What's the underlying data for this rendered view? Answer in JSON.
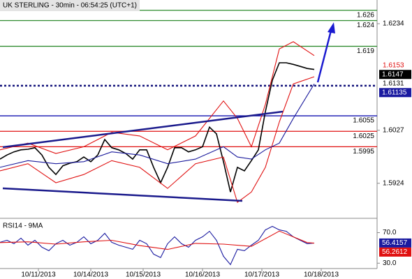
{
  "chart_data": [
    {
      "type": "line",
      "title": "UK STERLING - 30min - 06:54:25 (UTC+1)",
      "xlim": [
        0,
        54
      ],
      "ylim": [
        1.586,
        1.628
      ],
      "yticks": [
        1.5924,
        1.6027,
        1.6234
      ],
      "levels": [
        {
          "value": 1.626,
          "color": "#2e8b2e"
        },
        {
          "value": 1.624,
          "color": "#2e8b2e"
        },
        {
          "value": 1.619,
          "color": "#2e8b2e"
        },
        {
          "value": 1.61135,
          "color": "#10107a",
          "style": "dotted"
        },
        {
          "value": 1.6055,
          "color": "#1010b0"
        },
        {
          "value": 1.6025,
          "color": "#e01010"
        },
        {
          "value": 1.5995,
          "color": "#e01010"
        }
      ],
      "price_labels": [
        {
          "value": 1.6153,
          "color": "#e01010"
        },
        {
          "value": 1.6147,
          "box": "#000000"
        },
        {
          "value": 1.6131,
          "color": "#000000"
        },
        {
          "value": 1.61135,
          "box": "#1a1aa0"
        }
      ],
      "series": [
        {
          "color": "#000000",
          "x": [
            0,
            1,
            2,
            3,
            4,
            5,
            6,
            7,
            8,
            9,
            10,
            11,
            12,
            13,
            14,
            15,
            16,
            17,
            18,
            19,
            20,
            21,
            22,
            23,
            24,
            25,
            26,
            27,
            28,
            29,
            30,
            31,
            32,
            33,
            34,
            35,
            36,
            37,
            38,
            39,
            40,
            41,
            42,
            43,
            44,
            45
          ],
          "values": [
            1.5971,
            1.5979,
            1.5985,
            1.5989,
            1.599,
            1.5993,
            1.5979,
            1.5955,
            1.5941,
            1.5958,
            1.5963,
            1.5966,
            1.5975,
            1.5966,
            1.5979,
            1.6009,
            1.5993,
            1.5989,
            1.5982,
            1.5971,
            1.5989,
            1.5989,
            1.5955,
            1.5925,
            1.5955,
            1.5993,
            1.5993,
            1.5985,
            1.5989,
            1.5995,
            1.6033,
            1.602,
            1.5966,
            1.5907,
            1.5955,
            1.5948,
            1.5968,
            1.5989,
            1.6063,
            1.6124,
            1.6158,
            1.6158,
            1.6155,
            1.6151,
            1.6147,
            1.6145
          ]
        },
        {
          "color": "#e01010",
          "x": [
            0,
            4,
            8,
            12,
            16,
            20,
            24,
            28,
            30,
            32,
            34,
            36,
            38,
            40,
            42,
            45
          ],
          "values": [
            1.5989,
            1.6002,
            1.5982,
            1.5995,
            1.6023,
            1.6016,
            1.5989,
            1.6016,
            1.605,
            1.6084,
            1.605,
            1.5995,
            1.6077,
            1.6185,
            1.6199,
            1.6172
          ]
        },
        {
          "color": "#e01010",
          "x": [
            0,
            4,
            8,
            12,
            16,
            20,
            24,
            28,
            32,
            34,
            36,
            38,
            40,
            42,
            45
          ],
          "values": [
            1.5948,
            1.5962,
            1.5925,
            1.5941,
            1.5968,
            1.5955,
            1.5914,
            1.5962,
            1.5975,
            1.5887,
            1.5907,
            1.5955,
            1.6043,
            1.6117,
            1.6131
          ]
        },
        {
          "color": "#1a1a9c",
          "x": [
            0,
            4,
            8,
            12,
            16,
            20,
            24,
            28,
            32,
            34,
            36,
            38,
            40,
            42,
            45
          ],
          "values": [
            1.5955,
            1.5968,
            1.5962,
            1.5966,
            1.5985,
            1.5979,
            1.5962,
            1.5971,
            1.5995,
            1.5975,
            1.5971,
            1.5989,
            1.6002,
            1.605,
            1.6117
          ]
        }
      ]
    },
    {
      "type": "line",
      "title": "RSI14 - 9MA",
      "xlim": [
        0,
        54
      ],
      "ylim": [
        23,
        86
      ],
      "yticks": [
        {
          "value": 30,
          "label": "30.0"
        },
        {
          "value": 70,
          "label": "70.0"
        }
      ],
      "xticks": [
        {
          "value": 5.5,
          "label": "10/11/2013"
        },
        {
          "value": 13,
          "label": "10/14/2013"
        },
        {
          "value": 20.5,
          "label": "10/15/2013"
        },
        {
          "value": 29,
          "label": "10/16/2013"
        },
        {
          "value": 37.5,
          "label": "10/17/2013"
        },
        {
          "value": 46,
          "label": "10/18/2013"
        }
      ],
      "price_labels": [
        {
          "value": 56.4157,
          "box": "#1a1aa0"
        },
        {
          "value": 56.2612,
          "box": "#e01010"
        }
      ],
      "series": [
        {
          "color": "#1a1aa0",
          "x": [
            0,
            1,
            2,
            3,
            4,
            5,
            6,
            7,
            8,
            9,
            10,
            11,
            12,
            13,
            14,
            15,
            16,
            17,
            18,
            19,
            20,
            21,
            22,
            23,
            24,
            25,
            26,
            27,
            28,
            29,
            30,
            31,
            32,
            33,
            34,
            35,
            36,
            37,
            38,
            39,
            40,
            41,
            42,
            43,
            44,
            45
          ],
          "values": [
            57.3,
            60,
            55.5,
            62.7,
            53.6,
            60,
            50.9,
            46.4,
            55.5,
            60,
            53.6,
            57.3,
            64.5,
            55.5,
            60,
            69.1,
            57.3,
            53.6,
            50.9,
            48.2,
            60,
            55.5,
            41.8,
            37.3,
            55.5,
            64.5,
            55.5,
            50.9,
            60,
            64.5,
            71.8,
            60,
            39.1,
            28.2,
            48.2,
            46.4,
            53.6,
            60,
            73.6,
            78.2,
            73.6,
            71.8,
            64.5,
            60,
            55.5,
            56.4157
          ]
        },
        {
          "color": "#e01010",
          "x": [
            0,
            4,
            8,
            12,
            16,
            20,
            24,
            28,
            32,
            36,
            40,
            44,
            45
          ],
          "values": [
            57,
            58,
            55,
            58,
            60,
            53,
            48,
            56,
            55,
            52,
            72,
            57,
            56.2612
          ]
        }
      ]
    }
  ]
}
